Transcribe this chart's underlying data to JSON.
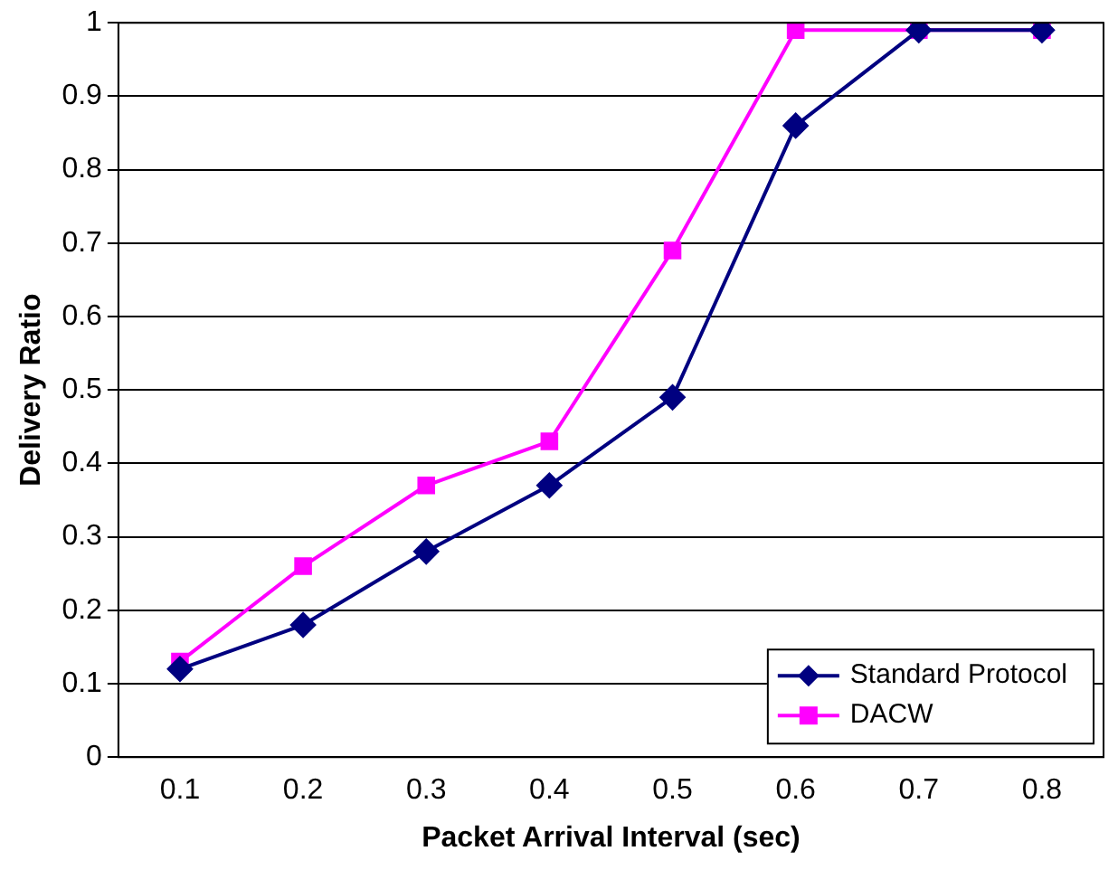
{
  "chart_data": {
    "type": "line",
    "xlabel": "Packet Arrival Interval (sec)",
    "ylabel": "Delivery Ratio",
    "categories": [
      "0.1",
      "0.2",
      "0.3",
      "0.4",
      "0.5",
      "0.6",
      "0.7",
      "0.8"
    ],
    "series": [
      {
        "name": "Standard Protocol",
        "color": "#000080",
        "marker": "diamond",
        "values": [
          0.12,
          0.18,
          0.28,
          0.37,
          0.49,
          0.86,
          0.99,
          0.99
        ]
      },
      {
        "name": "DACW",
        "color": "#ff00ff",
        "marker": "square",
        "values": [
          0.13,
          0.26,
          0.37,
          0.43,
          0.69,
          0.99,
          0.99,
          0.99
        ]
      }
    ],
    "ylim": [
      0,
      1
    ],
    "yticks": [
      0,
      0.1,
      0.2,
      0.3,
      0.4,
      0.5,
      0.6,
      0.7,
      0.8,
      0.9,
      1
    ],
    "grid": "y",
    "legend": "bottom right",
    "line_style": "solid"
  }
}
